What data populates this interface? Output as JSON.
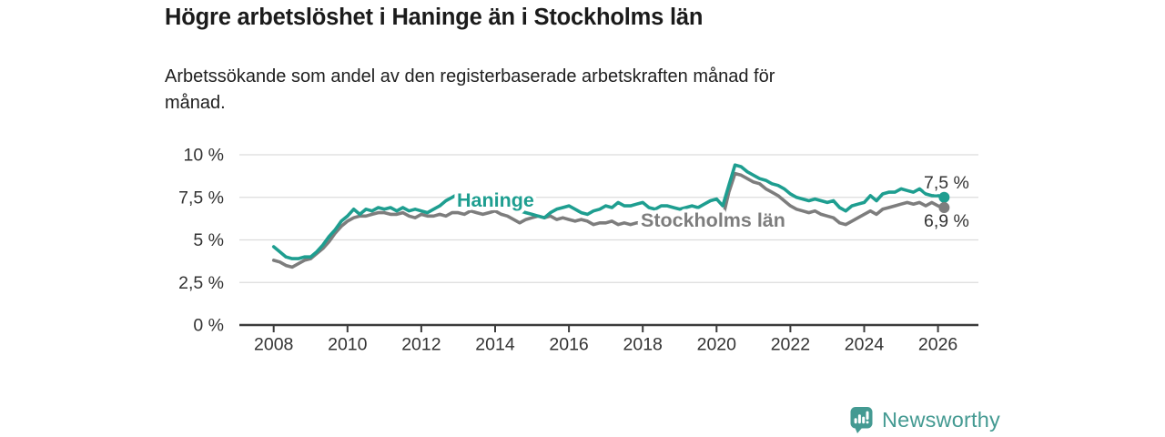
{
  "header": {
    "title": "Högre arbetslöshet i Haninge än i Stockholms län",
    "subtitle_line1": "Arbetssökande som andel av den registerbaserade arbetskraften månad för",
    "subtitle_line2": "månad."
  },
  "branding": {
    "logo_text": "Newsworthy",
    "logo_icon": "bar-chart-speech-bubble",
    "logo_color": "#449a92"
  },
  "colors": {
    "axis": "#3c3c3c",
    "grid": "#dcdcdc",
    "tick_text": "#333333",
    "value_label_text": "#333333",
    "background": "#ffffff",
    "haninge": "#1e9e90",
    "stockholms_lan": "#7d7d7d"
  },
  "chart_data": {
    "type": "line",
    "grid": "horizontal",
    "legend_position": "inline-labels",
    "x_axis": {
      "start_year": 2008,
      "step_months": 2,
      "tick_years": [
        2008,
        2010,
        2012,
        2014,
        2016,
        2018,
        2020,
        2022,
        2024,
        2026
      ]
    },
    "y_axis": {
      "tick_labels": [
        "0 %",
        "2,5 %",
        "5 %",
        "7,5 %",
        "10 %"
      ],
      "tick_values": [
        0,
        2.5,
        5,
        7.5,
        10
      ],
      "ylim": [
        0,
        10.5
      ],
      "unit": "%"
    },
    "series": [
      {
        "name": "Haninge",
        "color": "#1e9e90",
        "end_label": "7,5 %",
        "end_value": 7.5,
        "values": [
          4.6,
          4.3,
          4.0,
          3.9,
          3.9,
          4.0,
          4.0,
          4.3,
          4.7,
          5.2,
          5.6,
          6.1,
          6.4,
          6.8,
          6.5,
          6.8,
          6.7,
          6.9,
          6.8,
          6.9,
          6.7,
          6.9,
          6.7,
          6.8,
          6.7,
          6.6,
          6.8,
          7.0,
          7.3,
          7.5,
          7.7,
          7.7,
          7.5,
          7.5,
          7.3,
          7.3,
          7.2,
          7.1,
          7.0,
          6.8,
          6.7,
          6.6,
          6.5,
          6.4,
          6.3,
          6.6,
          6.8,
          6.9,
          7.0,
          6.8,
          6.6,
          6.5,
          6.7,
          6.8,
          7.0,
          6.9,
          7.2,
          7.0,
          7.0,
          7.1,
          7.2,
          6.9,
          6.8,
          7.0,
          7.0,
          6.9,
          6.8,
          6.9,
          7.0,
          6.9,
          7.1,
          7.3,
          7.4,
          7.0,
          8.2,
          9.4,
          9.3,
          9.0,
          8.8,
          8.6,
          8.5,
          8.3,
          8.2,
          8.0,
          7.7,
          7.5,
          7.4,
          7.3,
          7.4,
          7.3,
          7.2,
          7.3,
          6.9,
          6.7,
          7.0,
          7.1,
          7.2,
          7.6,
          7.3,
          7.7,
          7.8,
          7.8,
          8.0,
          7.9,
          7.8,
          8.0,
          7.7,
          7.6,
          7.6,
          7.5
        ]
      },
      {
        "name": "Stockholms län",
        "color": "#7d7d7d",
        "end_label": "6,9 %",
        "end_value": 6.9,
        "values": [
          3.8,
          3.7,
          3.5,
          3.4,
          3.6,
          3.8,
          3.9,
          4.2,
          4.5,
          4.9,
          5.4,
          5.8,
          6.1,
          6.3,
          6.4,
          6.4,
          6.5,
          6.6,
          6.6,
          6.5,
          6.5,
          6.6,
          6.4,
          6.3,
          6.5,
          6.4,
          6.4,
          6.5,
          6.4,
          6.6,
          6.6,
          6.5,
          6.7,
          6.6,
          6.5,
          6.6,
          6.7,
          6.5,
          6.4,
          6.2,
          6.0,
          6.2,
          6.3,
          6.4,
          6.3,
          6.4,
          6.2,
          6.3,
          6.2,
          6.1,
          6.2,
          6.1,
          5.9,
          6.0,
          6.0,
          6.1,
          5.9,
          6.0,
          5.9,
          6.0,
          6.0,
          5.9,
          6.0,
          6.0,
          6.1,
          6.0,
          6.0,
          6.1,
          6.1,
          6.2,
          6.2,
          6.3,
          6.4,
          6.3,
          7.8,
          8.9,
          8.8,
          8.6,
          8.4,
          8.3,
          8.0,
          7.8,
          7.6,
          7.3,
          7.0,
          6.8,
          6.7,
          6.6,
          6.7,
          6.5,
          6.4,
          6.3,
          6.0,
          5.9,
          6.1,
          6.3,
          6.5,
          6.7,
          6.5,
          6.8,
          6.9,
          7.0,
          7.1,
          7.2,
          7.1,
          7.2,
          7.0,
          7.2,
          7.0,
          6.9
        ]
      }
    ]
  }
}
